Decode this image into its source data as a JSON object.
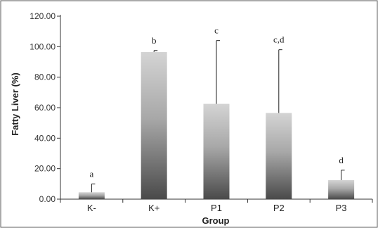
{
  "chart_data": {
    "type": "bar",
    "categories": [
      "K-",
      "K+",
      "P1",
      "P2",
      "P3"
    ],
    "values": [
      4.5,
      96.5,
      62.5,
      56.5,
      12.5
    ],
    "error_upper": [
      10,
      97.5,
      104,
      98,
      19
    ],
    "significance_labels": [
      "a",
      "b",
      "c",
      "c,d",
      "d"
    ],
    "xlabel": "Group",
    "ylabel": "Fatty Liver (%)",
    "ylim": [
      0,
      120
    ],
    "yticks": [
      "0.00",
      "20.00",
      "40.00",
      "60.00",
      "80.00",
      "100.00",
      "120.00"
    ],
    "ytick_values": [
      0,
      20,
      40,
      60,
      80,
      100,
      120
    ],
    "grid": false,
    "legend": "none",
    "colors": {
      "bar_top": "#d4d4d4",
      "bar_bottom": "#4a4a4a",
      "axis": "#333333",
      "frame": "#555555"
    }
  }
}
